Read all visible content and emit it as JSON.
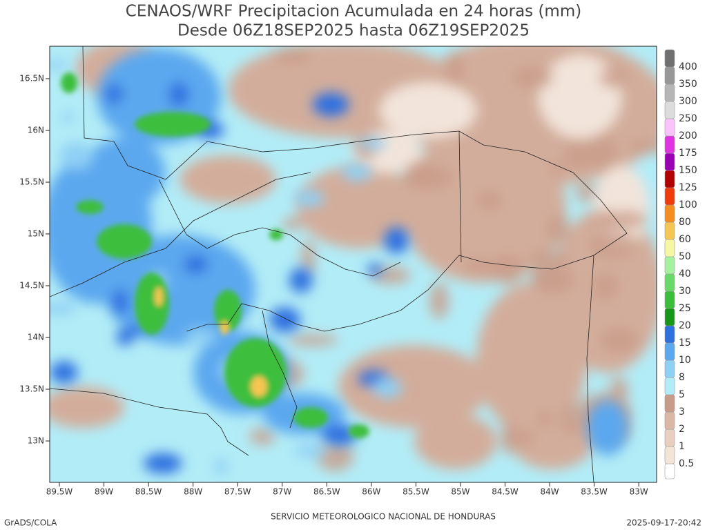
{
  "header": {
    "title": "CENAOS/WRF Precipitacion Acumulada en 24 horas (mm)",
    "subtitle": "Desde 06Z18SEP2025 hasta 06Z19SEP2025"
  },
  "map": {
    "lat_labels": [
      "16.5N",
      "16N",
      "15.5N",
      "15N",
      "14.5N",
      "14N",
      "13.5N",
      "13N"
    ],
    "lon_labels": [
      "89.5W",
      "89W",
      "88.5W",
      "88W",
      "87.5W",
      "87W",
      "86.5W",
      "86W",
      "85.5W",
      "85W",
      "84.5W",
      "84W",
      "83.5W",
      "83W"
    ]
  },
  "colorbar": {
    "levels": [
      0.5,
      1,
      2,
      3,
      5,
      8,
      10,
      15,
      20,
      25,
      30,
      40,
      50,
      60,
      80,
      100,
      125,
      150,
      175,
      200,
      250,
      300,
      350,
      400
    ],
    "colors": [
      "#ffffff",
      "#f3e4d8",
      "#e8cfc0",
      "#dbb8a6",
      "#c99c8a",
      "#b2ecf7",
      "#8fd0f5",
      "#5ba8ef",
      "#2f70df",
      "#17961a",
      "#3cbe3c",
      "#6ad96a",
      "#a4f2a0",
      "#f6f6a4",
      "#f6c652",
      "#f58d20",
      "#ef3c0c",
      "#b20000",
      "#9c00b4",
      "#e034e0",
      "#f9c4f9",
      "#dcdcdc",
      "#b6b6b6",
      "#979797",
      "#6f6f6f"
    ]
  },
  "footer": {
    "left": "GrADS/COLA",
    "center": "SERVICIO METEOROLOGICO NACIONAL DE HONDURAS",
    "right": "2025-09-17-20:42"
  }
}
